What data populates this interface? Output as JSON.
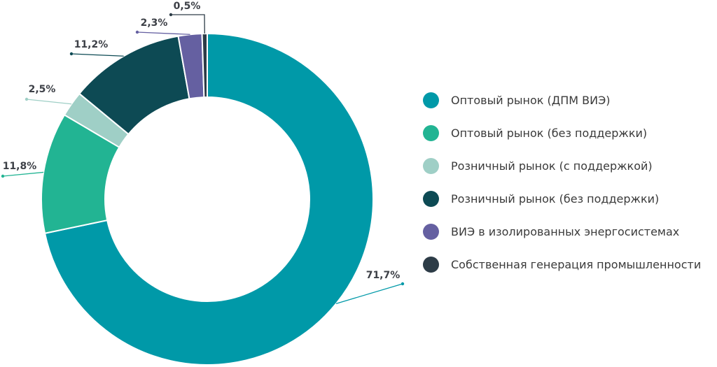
{
  "chart_data": {
    "type": "pie",
    "variant": "donut",
    "categories": [
      "Оптовый рынок (ДПМ ВИЭ)",
      "Оптовый рынок (без поддержки)",
      "Розничный рынок (с поддержкой)",
      "Розничный рынок (без поддержки)",
      "ВИЭ в изолированных энергосистемах",
      "Собственная генерация промышленности"
    ],
    "values": [
      71.7,
      11.8,
      2.5,
      11.2,
      2.3,
      0.5
    ],
    "value_labels": [
      "71,7%",
      "11,8%",
      "2,5%",
      "11,2%",
      "2,3%",
      "0,5%"
    ],
    "colors": [
      "#0099a8",
      "#22b493",
      "#9fcfc6",
      "#0d4a54",
      "#6560a1",
      "#2d3c47"
    ],
    "legend_position": "right"
  }
}
